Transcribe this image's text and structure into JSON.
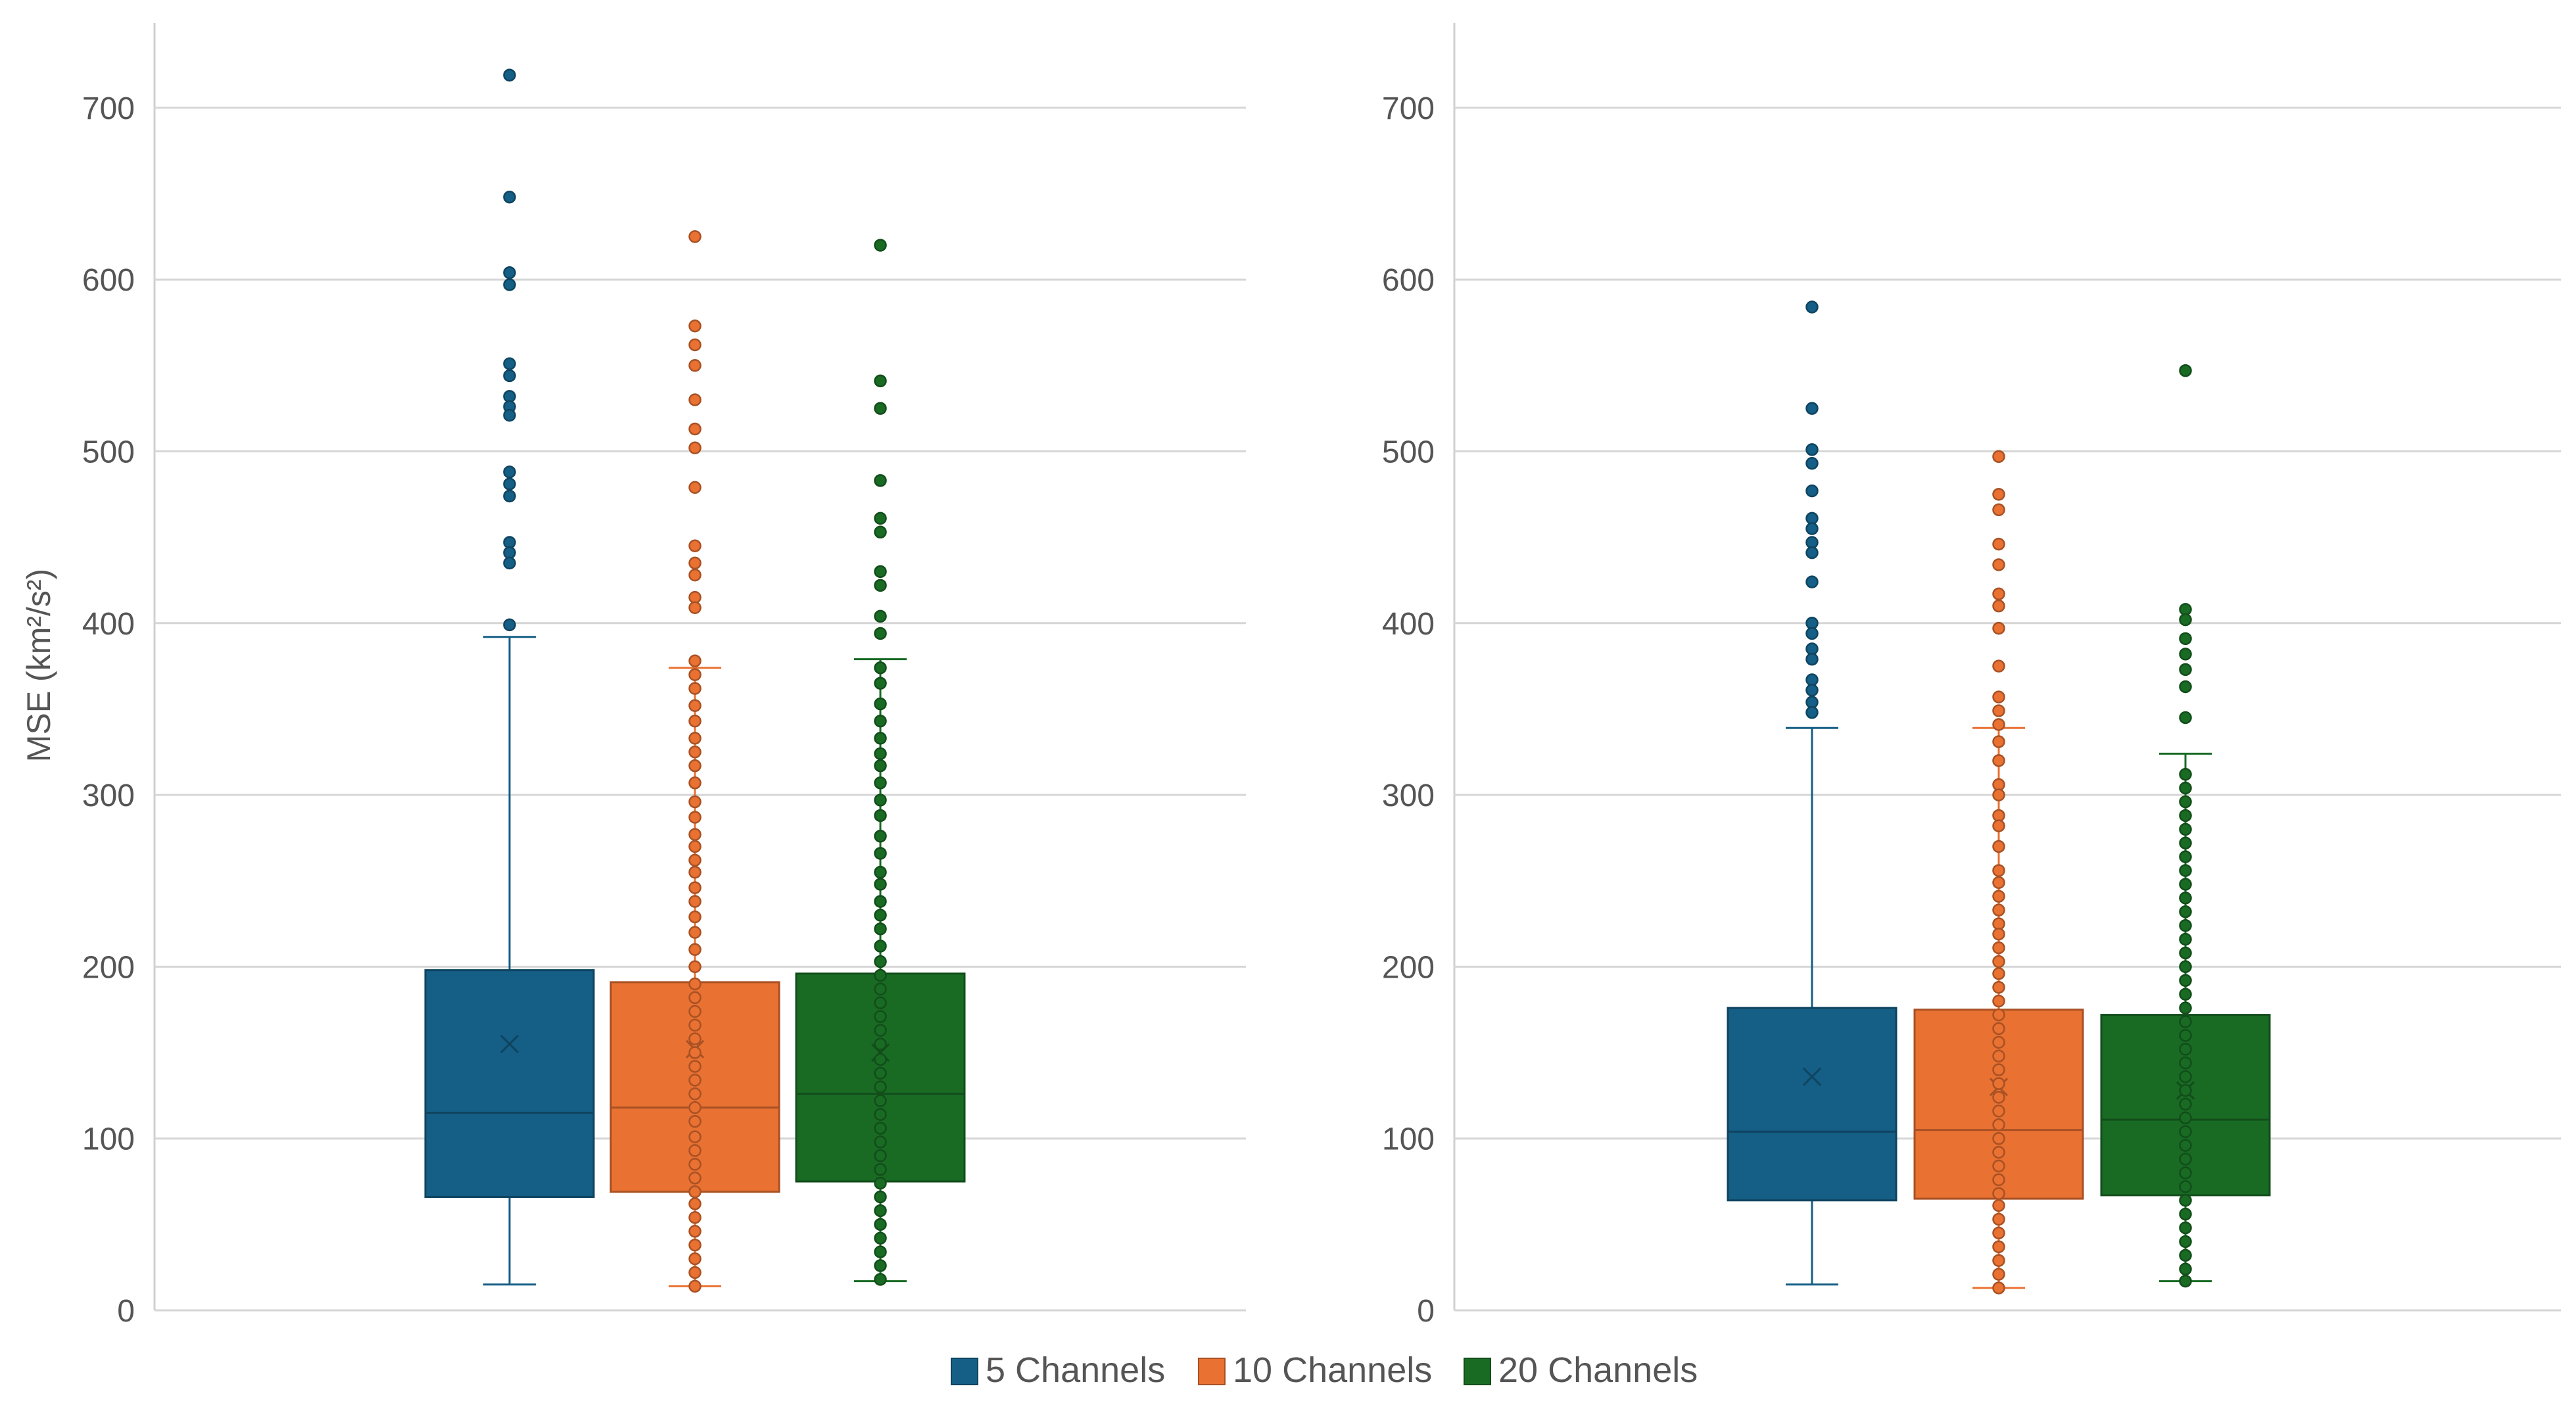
{
  "chart_data": {
    "type": "box",
    "ylabel": "MSE (km²/s²)",
    "ylim": [
      0,
      750
    ],
    "yticks": [
      0,
      100,
      200,
      300,
      400,
      500,
      600,
      700
    ],
    "grid": true,
    "legend_position": "bottom-center",
    "series": [
      {
        "name": "5 Channels",
        "color": "#155e85"
      },
      {
        "name": "10 Channels",
        "color": "#e97132"
      },
      {
        "name": "20 Channels",
        "color": "#196b24"
      }
    ],
    "panels": [
      {
        "boxes": [
          {
            "series": "5 Channels",
            "min": 15,
            "q1": 66,
            "median": 115,
            "mean": 155,
            "q3": 198,
            "max": 392,
            "points": [
              719,
              648,
              604,
              597,
              551,
              544,
              532,
              526,
              521,
              488,
              481,
              474,
              447,
              441,
              435,
              399
            ]
          },
          {
            "series": "10 Channels",
            "min": 14,
            "q1": 69,
            "median": 118,
            "mean": 152,
            "q3": 191,
            "max": 374,
            "points": [
              625,
              573,
              562,
              550,
              530,
              513,
              502,
              479,
              445,
              435,
              428,
              415,
              409,
              378,
              370,
              362,
              352,
              343,
              333,
              325,
              317,
              307,
              296,
              287,
              277,
              270,
              262,
              255,
              246,
              238,
              229,
              220,
              210,
              200,
              190,
              182,
              174,
              166,
              158,
              150,
              142,
              134,
              126,
              118,
              110,
              101,
              93,
              85,
              77,
              69,
              62,
              54,
              46,
              38,
              30,
              22,
              14
            ]
          },
          {
            "series": "20 Channels",
            "min": 17,
            "q1": 75,
            "median": 126,
            "mean": 150,
            "q3": 196,
            "max": 379,
            "points": [
              620,
              541,
              525,
              483,
              461,
              453,
              430,
              422,
              404,
              394,
              374,
              365,
              353,
              343,
              333,
              324,
              317,
              307,
              297,
              288,
              276,
              266,
              255,
              248,
              238,
              230,
              222,
              212,
              203,
              195,
              187,
              179,
              171,
              163,
              155,
              146,
              138,
              130,
              122,
              114,
              106,
              98,
              90,
              82,
              74,
              66,
              58,
              50,
              42,
              34,
              26,
              18
            ]
          }
        ]
      },
      {
        "boxes": [
          {
            "series": "5 Channels",
            "min": 15,
            "q1": 64,
            "median": 104,
            "mean": 136,
            "q3": 176,
            "max": 339,
            "points": [
              584,
              525,
              501,
              493,
              477,
              461,
              455,
              447,
              441,
              424,
              400,
              394,
              385,
              379,
              367,
              361,
              354,
              348
            ]
          },
          {
            "series": "10 Channels",
            "min": 13,
            "q1": 65,
            "median": 105,
            "mean": 130,
            "q3": 175,
            "max": 339,
            "points": [
              497,
              475,
              466,
              446,
              434,
              417,
              410,
              397,
              375,
              357,
              349,
              341,
              331,
              320,
              306,
              300,
              288,
              282,
              270,
              256,
              249,
              241,
              233,
              225,
              219,
              211,
              203,
              196,
              188,
              180,
              172,
              164,
              156,
              148,
              140,
              132,
              124,
              116,
              108,
              100,
              92,
              84,
              76,
              68,
              61,
              53,
              45,
              37,
              29,
              21,
              13
            ]
          },
          {
            "series": "20 Channels",
            "min": 17,
            "q1": 67,
            "median": 111,
            "mean": 128,
            "q3": 172,
            "max": 324,
            "points": [
              547,
              408,
              402,
              391,
              382,
              373,
              363,
              345,
              312,
              304,
              296,
              288,
              280,
              272,
              264,
              256,
              248,
              240,
              232,
              224,
              216,
              208,
              200,
              192,
              184,
              176,
              168,
              160,
              152,
              144,
              136,
              128,
              120,
              112,
              104,
              96,
              88,
              80,
              72,
              64,
              56,
              48,
              40,
              32,
              24,
              17
            ]
          }
        ]
      }
    ]
  }
}
